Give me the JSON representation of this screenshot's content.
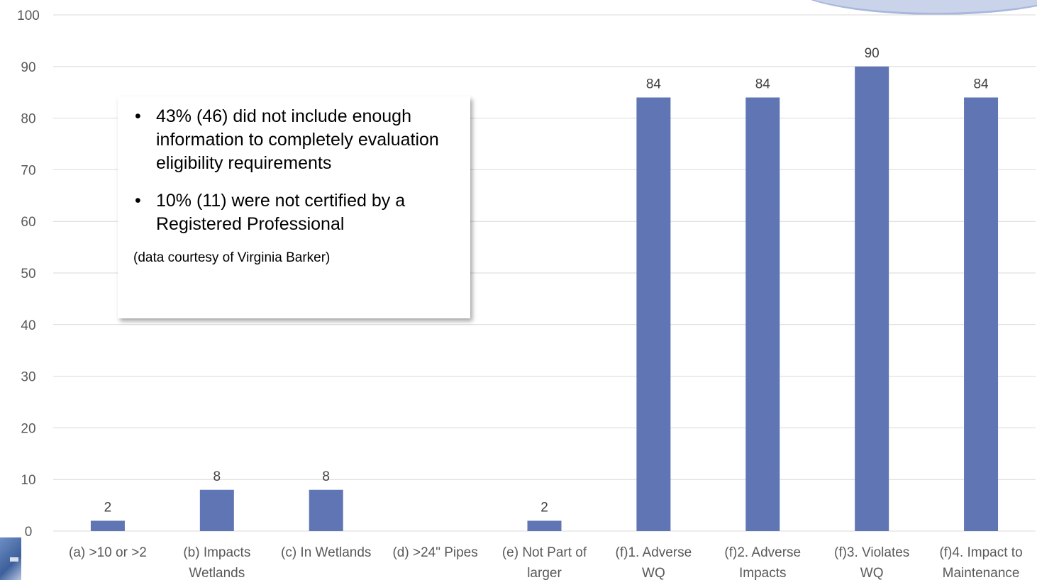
{
  "chart_data": {
    "type": "bar",
    "categories": [
      [
        "(a) >10 or >2"
      ],
      [
        "(b) Impacts",
        "Wetlands"
      ],
      [
        "(c) In Wetlands"
      ],
      [
        "(d) >24\" Pipes"
      ],
      [
        "(e) Not Part of",
        "larger"
      ],
      [
        "(f)1. Adverse",
        "WQ"
      ],
      [
        "(f)2. Adverse",
        "Impacts"
      ],
      [
        "(f)3. Violates",
        "WQ"
      ],
      [
        "(f)4. Impact to",
        "Maintenance"
      ]
    ],
    "values": [
      2,
      8,
      8,
      0,
      2,
      84,
      84,
      90,
      84
    ],
    "data_labels": [
      "2",
      "8",
      "8",
      "",
      "2",
      "84",
      "84",
      "90",
      "84"
    ],
    "ylim": [
      0,
      100
    ],
    "yticks": [
      0,
      10,
      20,
      30,
      40,
      50,
      60,
      70,
      80,
      90,
      100
    ],
    "grid": true,
    "bar_color": "#6076b4",
    "title": "",
    "xlabel": "",
    "ylabel": ""
  },
  "callout": {
    "bullets": [
      "43% (46) did not include enough information to completely evaluation eligibility requirements",
      "10% (11) were not certified by a Registered Professional"
    ],
    "note": "(data courtesy of Virginia Barker)"
  }
}
